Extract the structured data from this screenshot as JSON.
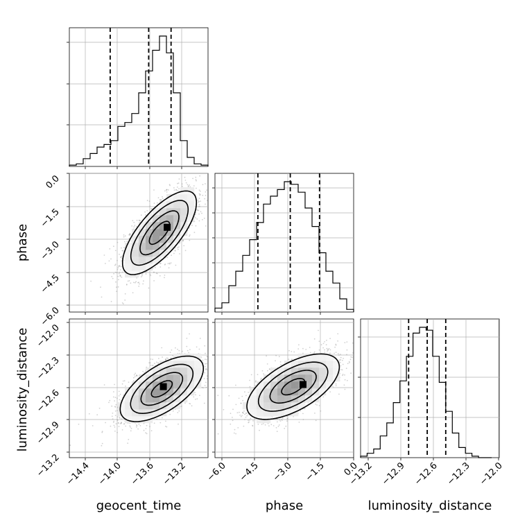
{
  "chart_data": {
    "type": "corner",
    "grid": true,
    "parameters": [
      "geocent_time",
      "phase",
      "luminosity_distance"
    ],
    "ticks": {
      "geocent_time": [
        "−14.4",
        "−14.0",
        "−13.6",
        "−13.2"
      ],
      "phase": [
        "−6.0",
        "−4.5",
        "−3.0",
        "−1.5",
        "0.0"
      ],
      "luminosity_distance": [
        "−13.2",
        "−12.9",
        "−12.6",
        "−12.3",
        "−12.0"
      ]
    },
    "ranges": {
      "geocent_time": [
        -14.65,
        -12.85
      ],
      "phase": [
        -6.3,
        0.0
      ],
      "luminosity_distance": [
        -13.25,
        -11.98
      ]
    },
    "marginals": [
      {
        "param": "geocent_time",
        "bin_edges": [
          -14.65,
          -14.56,
          -14.47,
          -14.38,
          -14.29,
          -14.2,
          -14.11,
          -14.02,
          -13.93,
          -13.84,
          -13.75,
          -13.66,
          -13.57,
          -13.48,
          -13.39,
          -13.3,
          -13.21,
          -13.12,
          -13.03,
          -12.94,
          -12.85
        ],
        "counts": [
          1,
          2,
          6,
          10,
          15,
          17,
          20,
          31,
          34,
          41,
          57,
          74,
          90,
          101,
          88,
          57,
          20,
          7,
          2,
          1
        ],
        "quantiles": [
          -14.12,
          -13.62,
          -13.33
        ]
      },
      {
        "param": "phase",
        "bin_edges": [
          -6.3,
          -5.985,
          -5.67,
          -5.355,
          -5.04,
          -4.725,
          -4.41,
          -4.095,
          -3.78,
          -3.465,
          -3.15,
          -2.835,
          -2.52,
          -2.205,
          -1.89,
          -1.575,
          -1.26,
          -0.945,
          -0.63,
          -0.315,
          0.0
        ],
        "counts": [
          3,
          7,
          20,
          31,
          43,
          55,
          68,
          82,
          88,
          93,
          99,
          97,
          91,
          79,
          65,
          45,
          31,
          22,
          10,
          2
        ],
        "quantiles": [
          -4.35,
          -2.88,
          -1.55
        ]
      },
      {
        "param": "luminosity_distance",
        "bin_edges": [
          -13.25,
          -13.19,
          -13.13,
          -13.07,
          -13.01,
          -12.95,
          -12.89,
          -12.83,
          -12.77,
          -12.71,
          -12.65,
          -12.59,
          -12.53,
          -12.47,
          -12.41,
          -12.35,
          -12.29,
          -12.23,
          -12.17,
          -12.11,
          -12.05
        ],
        "counts": [
          1,
          3,
          6,
          15,
          24,
          38,
          53,
          70,
          86,
          90,
          88,
          70,
          52,
          32,
          17,
          7,
          3,
          1,
          0,
          0
        ],
        "quantiles": [
          -12.81,
          -12.64,
          -12.47
        ]
      }
    ],
    "joint": [
      {
        "x": "geocent_time",
        "y": "phase",
        "mean": [
          -13.48,
          -2.7
        ],
        "sigma": [
          0.24,
          0.95
        ],
        "corr": 0.72,
        "level_scale": [
          0.55,
          1.05,
          1.55,
          2.0
        ],
        "peak": [
          -13.38,
          -2.45
        ]
      },
      {
        "x": "geocent_time",
        "y": "luminosity_distance",
        "mean": [
          -13.45,
          -12.62
        ],
        "sigma": [
          0.27,
          0.15
        ],
        "corr": 0.62,
        "level_scale": [
          0.5,
          1.0,
          1.5,
          2.0
        ],
        "peak": [
          -13.43,
          -12.6
        ]
      },
      {
        "x": "phase",
        "y": "luminosity_distance",
        "mean": [
          -2.75,
          -12.6
        ],
        "sigma": [
          1.05,
          0.15
        ],
        "corr": 0.6,
        "level_scale": [
          0.5,
          1.0,
          1.5,
          2.0
        ],
        "peak": [
          -2.3,
          -12.58
        ]
      }
    ]
  }
}
